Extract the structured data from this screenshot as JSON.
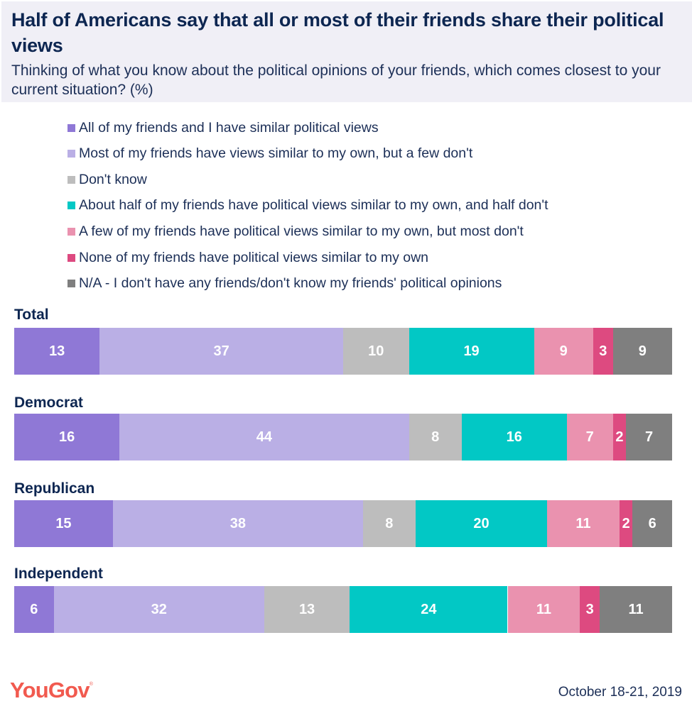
{
  "header": {
    "title": "Half of Americans say that all or most of their friends share their political views",
    "subtitle": "Thinking of what you know about the political opinions of your friends, which comes closest to your current situation? (%)"
  },
  "footer": {
    "logo": "YouGov",
    "logo_mark": "®",
    "date": "October 18-21, 2019"
  },
  "chart_data": {
    "type": "bar",
    "orientation": "horizontal-stacked-100",
    "title": "Half of Americans say that all or most of their friends share their political views",
    "subtitle": "Thinking of what you know about the political opinions of your friends, which comes closest to your current situation? (%)",
    "legend_position": "top",
    "categories": [
      "Total",
      "Democrat",
      "Republican",
      "Independent"
    ],
    "series": [
      {
        "name": "All of my friends and I have similar political views",
        "color": "#8f78d6",
        "values": [
          13,
          16,
          15,
          6
        ]
      },
      {
        "name": "Most of my friends have views similar to my own, but a few don't",
        "color": "#baafe5",
        "values": [
          37,
          44,
          38,
          32
        ]
      },
      {
        "name": "Don't know",
        "color": "#bdbdbd",
        "values": [
          10,
          8,
          8,
          13
        ]
      },
      {
        "name": "About half of my friends have political views similar to my own, and half don't",
        "color": "#02c8c5",
        "values": [
          19,
          16,
          20,
          24
        ]
      },
      {
        "name": "A few of my friends have political views similar to my own, but most don't",
        "color": "#ea92af",
        "values": [
          9,
          7,
          11,
          11
        ]
      },
      {
        "name": "None of my friends have political views similar to my own",
        "color": "#dd4a80",
        "values": [
          3,
          2,
          2,
          3
        ]
      },
      {
        "name": "N/A - I don't have any friends/don't know my friends' political opinions",
        "color": "#7f7f7f",
        "values": [
          9,
          7,
          6,
          11
        ]
      }
    ],
    "xlim": [
      0,
      100
    ],
    "grid": false,
    "data_labels": true
  }
}
